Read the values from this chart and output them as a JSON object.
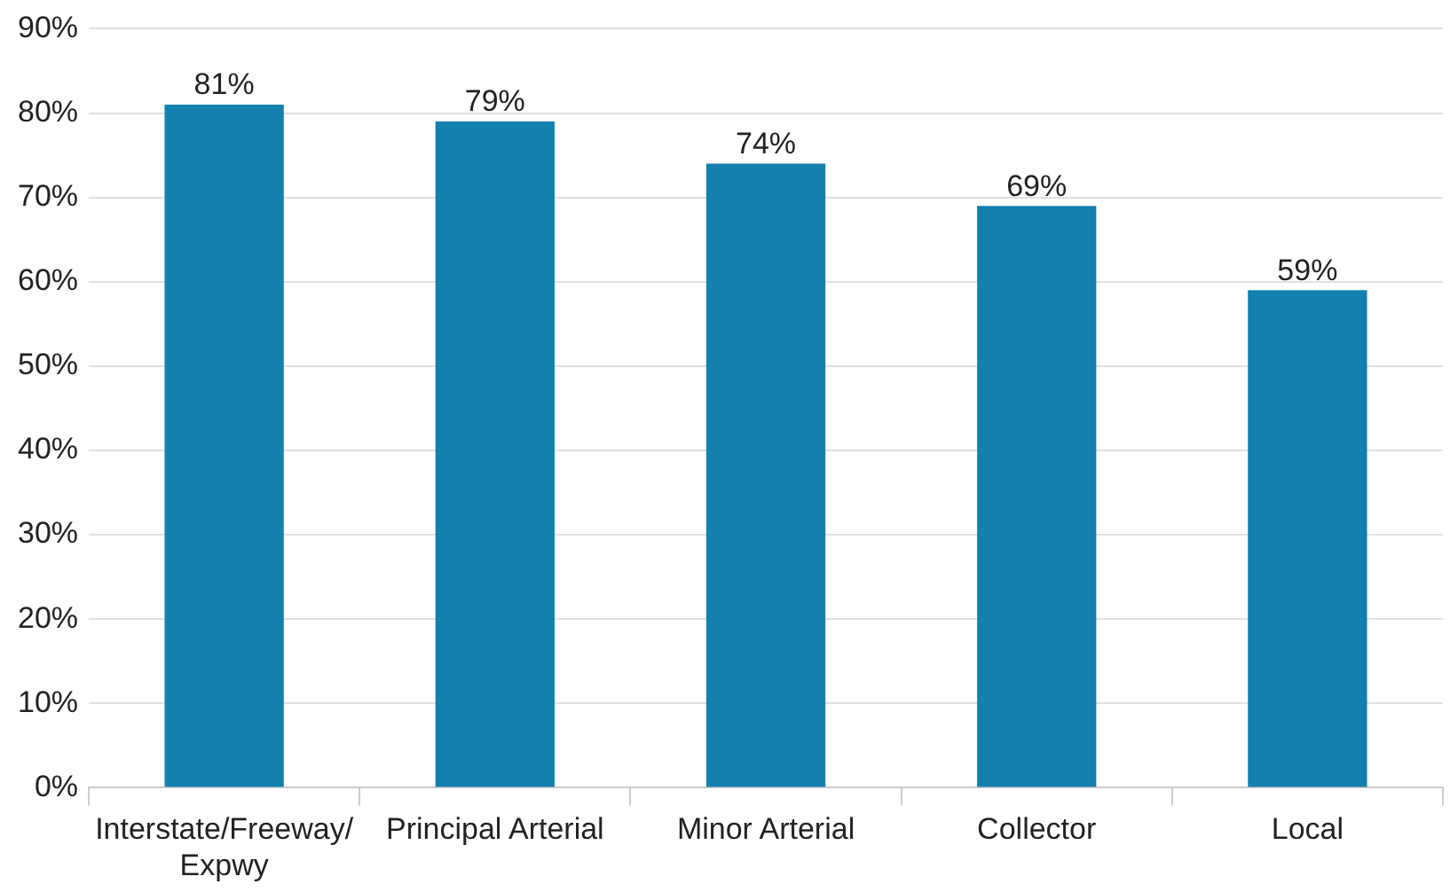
{
  "chart_data": {
    "type": "bar",
    "categories": [
      "Interstate/Freeway/Expwy",
      "Principal Arterial",
      "Minor Arterial",
      "Collector",
      "Local"
    ],
    "values": [
      81,
      79,
      74,
      69,
      59
    ],
    "value_labels": [
      "81%",
      "79%",
      "74%",
      "69%",
      "59%"
    ],
    "color": "#1380ae",
    "ylim": [
      0,
      90
    ],
    "yticks": [
      {
        "value": 0,
        "label": "0%"
      },
      {
        "value": 10,
        "label": "10%"
      },
      {
        "value": 20,
        "label": "20%"
      },
      {
        "value": 30,
        "label": "30%"
      },
      {
        "value": 40,
        "label": "40%"
      },
      {
        "value": 50,
        "label": "50%"
      },
      {
        "value": 60,
        "label": "60%"
      },
      {
        "value": 70,
        "label": "70%"
      },
      {
        "value": 80,
        "label": "80%"
      },
      {
        "value": 90,
        "label": "90%"
      }
    ],
    "grid": "y",
    "legend": false
  }
}
